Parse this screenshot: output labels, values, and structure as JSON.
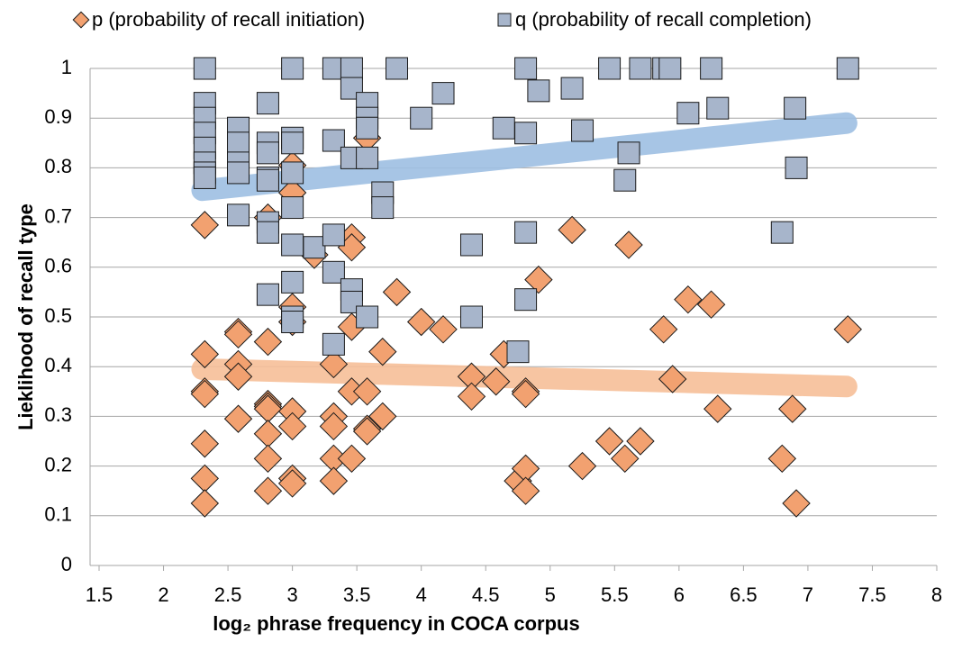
{
  "chart_data": {
    "type": "scatter",
    "xlabel": "log₂ phrase frequency in COCA corpus",
    "ylabel": "Lieklihood of recall type",
    "xlim": [
      1.5,
      8
    ],
    "xticks": [
      1.5,
      2,
      2.5,
      3,
      3.5,
      4,
      4.5,
      5,
      5.5,
      6,
      6.5,
      7,
      7.5,
      8
    ],
    "ylim": [
      0,
      1
    ],
    "yticks": [
      0,
      0.1,
      0.2,
      0.3,
      0.4,
      0.5,
      0.6,
      0.7,
      0.8,
      0.9,
      1
    ],
    "grid": true,
    "series": [
      {
        "name": "p (probability of recall initiation)",
        "color": "#f2a170",
        "marker": "diamond",
        "trend_color": "#f6bf98",
        "x": [
          2.32,
          2.32,
          2.32,
          2.32,
          2.32,
          2.32,
          2.32,
          2.58,
          2.58,
          2.58,
          2.58,
          2.58,
          2.81,
          2.81,
          2.81,
          2.81,
          2.81,
          2.81,
          2.81,
          2.81,
          3.0,
          3.0,
          3.0,
          3.0,
          3.0,
          3.0,
          3.0,
          3.0,
          3.17,
          3.32,
          3.32,
          3.32,
          3.32,
          3.32,
          3.46,
          3.46,
          3.46,
          3.46,
          3.46,
          3.58,
          3.58,
          3.58,
          3.58,
          3.7,
          3.7,
          3.81,
          4.0,
          4.17,
          4.39,
          4.39,
          4.58,
          4.64,
          4.75,
          4.81,
          4.81,
          4.81,
          4.81,
          4.91,
          5.17,
          5.25,
          5.46,
          5.58,
          5.61,
          5.7,
          5.88,
          5.95,
          6.07,
          6.25,
          6.3,
          6.8,
          6.88,
          6.91,
          7.31
        ],
        "values": [
          0.685,
          0.425,
          0.35,
          0.345,
          0.245,
          0.175,
          0.125,
          0.47,
          0.465,
          0.405,
          0.38,
          0.295,
          0.7,
          0.45,
          0.325,
          0.32,
          0.315,
          0.265,
          0.215,
          0.15,
          0.805,
          0.75,
          0.52,
          0.49,
          0.31,
          0.28,
          0.175,
          0.165,
          0.625,
          0.405,
          0.3,
          0.28,
          0.215,
          0.17,
          0.66,
          0.64,
          0.48,
          0.35,
          0.215,
          0.86,
          0.35,
          0.275,
          0.27,
          0.43,
          0.3,
          0.55,
          0.49,
          0.475,
          0.38,
          0.34,
          0.37,
          0.425,
          0.17,
          0.35,
          0.345,
          0.195,
          0.15,
          0.575,
          0.675,
          0.2,
          0.25,
          0.215,
          0.645,
          0.25,
          0.475,
          0.375,
          0.535,
          0.525,
          0.315,
          0.215,
          0.315,
          0.125,
          0.475
        ],
        "trendline": {
          "x": [
            2.3,
            7.3
          ],
          "values": [
            0.395,
            0.36
          ]
        }
      },
      {
        "name": "q (probability of recall completion)",
        "color": "#a7b5cb",
        "marker": "square",
        "trend_color": "#9dbfe2",
        "x": [
          2.32,
          2.32,
          2.32,
          2.32,
          2.32,
          2.32,
          2.32,
          2.32,
          2.58,
          2.58,
          2.58,
          2.58,
          2.58,
          2.81,
          2.81,
          2.81,
          2.81,
          2.81,
          2.81,
          2.81,
          2.81,
          3.0,
          3.0,
          3.0,
          3.0,
          3.0,
          3.0,
          3.0,
          3.0,
          3.0,
          3.17,
          3.32,
          3.32,
          3.32,
          3.32,
          3.32,
          3.46,
          3.46,
          3.46,
          3.46,
          3.46,
          3.58,
          3.58,
          3.58,
          3.58,
          3.58,
          3.7,
          3.7,
          3.81,
          4.0,
          4.17,
          4.39,
          4.39,
          4.39,
          4.64,
          4.75,
          4.81,
          4.81,
          4.81,
          4.81,
          4.91,
          5.17,
          5.25,
          5.46,
          5.58,
          5.61,
          5.7,
          5.88,
          5.93,
          6.07,
          6.25,
          6.3,
          6.8,
          6.9,
          6.91,
          7.31
        ],
        "values": [
          1.0,
          0.93,
          0.9,
          0.87,
          0.84,
          0.81,
          0.79,
          0.78,
          0.88,
          0.85,
          0.81,
          0.79,
          0.705,
          0.93,
          0.85,
          0.83,
          0.78,
          0.775,
          0.69,
          0.67,
          0.545,
          1.0,
          0.86,
          0.85,
          0.79,
          0.72,
          0.645,
          0.57,
          0.5,
          0.49,
          0.64,
          1.0,
          0.855,
          0.665,
          0.59,
          0.445,
          1.0,
          0.96,
          0.82,
          0.555,
          0.53,
          0.93,
          0.9,
          0.88,
          0.82,
          0.5,
          0.75,
          0.72,
          1.0,
          0.9,
          0.95,
          0.645,
          0.5,
          0.5,
          0.88,
          0.43,
          1.0,
          0.87,
          0.67,
          0.535,
          0.955,
          0.96,
          0.875,
          1.0,
          0.775,
          0.83,
          1.0,
          1.0,
          1.0,
          0.91,
          1.0,
          0.92,
          0.67,
          0.92,
          0.8,
          1.0
        ],
        "trendline": {
          "x": [
            2.3,
            7.3
          ],
          "values": [
            0.755,
            0.89
          ]
        }
      }
    ]
  }
}
